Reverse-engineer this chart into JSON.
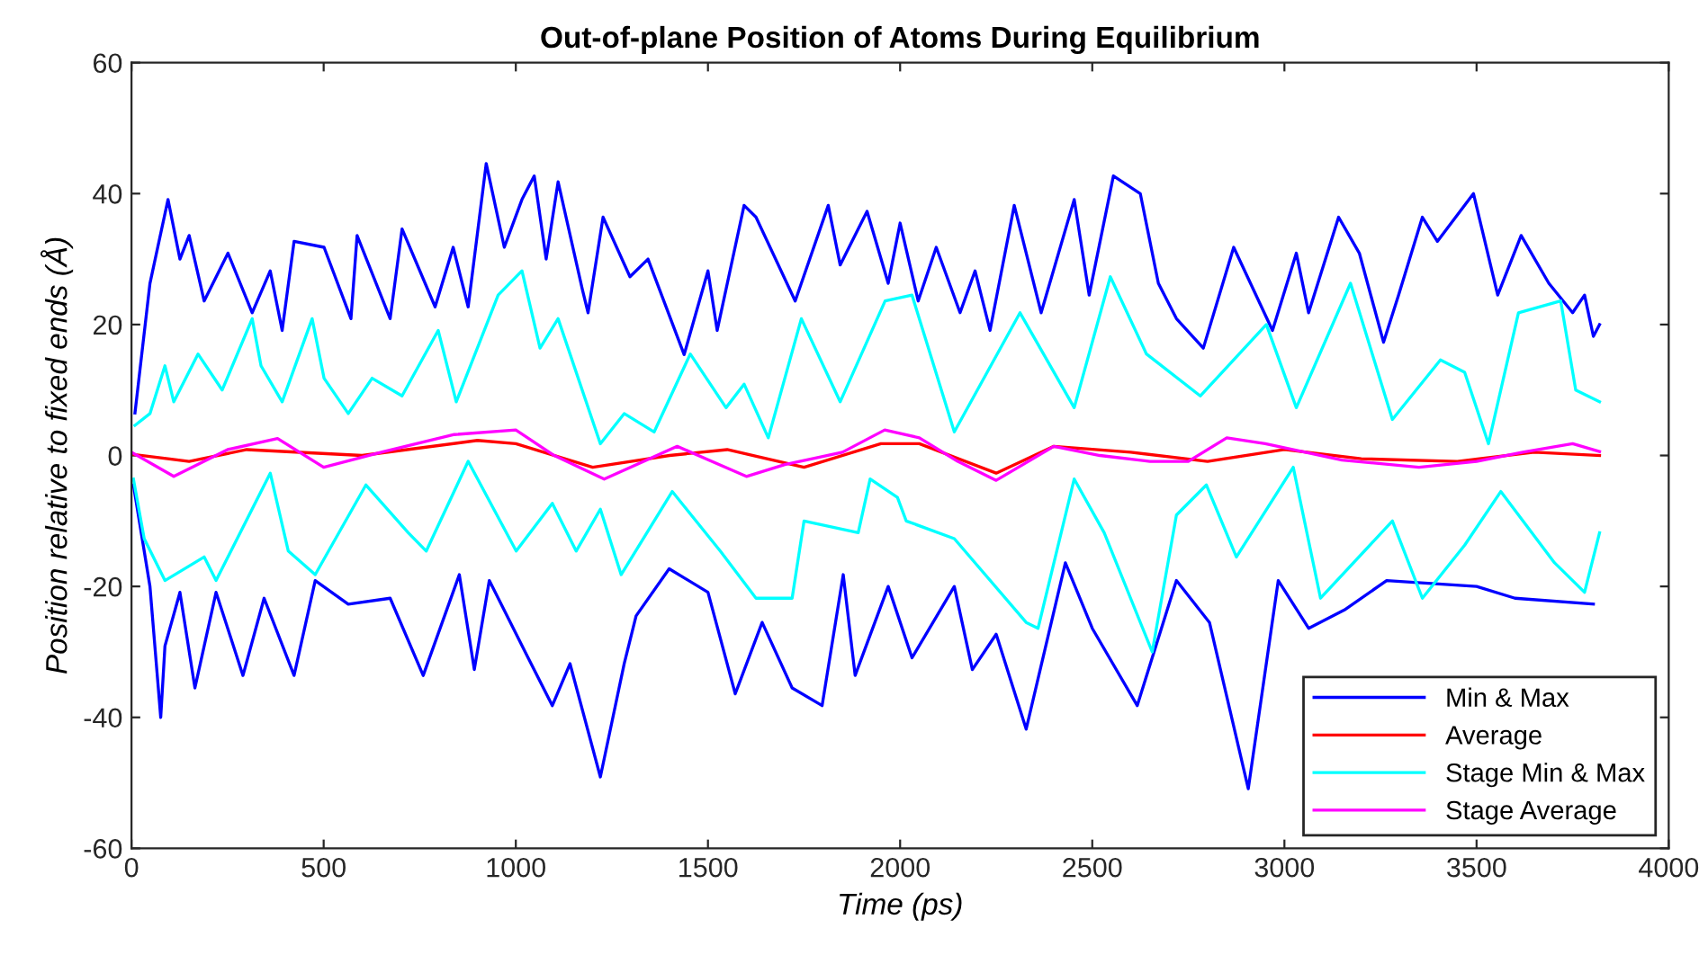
{
  "chart_data": {
    "type": "line",
    "title": "Out-of-plane Position of Atoms During Equilibrium",
    "xlabel": "Time (ps)",
    "ylabel": "Position relative to fixed ends (Å)",
    "xlim": [
      0,
      4000
    ],
    "xticks": [
      0,
      500,
      1000,
      1500,
      2000,
      2500,
      3000,
      3500,
      4000
    ],
    "ylim": [
      -60,
      60
    ],
    "yticks": [
      -60,
      -40,
      -20,
      0,
      20,
      40,
      60
    ],
    "grid": false,
    "legend": "bottom right",
    "marker": "none",
    "line_style": "solid",
    "series": [
      {
        "name": "Min & Max",
        "color": "#0000ff",
        "x": [
          9,
          48,
          95,
          126,
          150,
          189,
          251,
          314,
          361,
          392,
          423,
          501,
          571,
          587,
          673,
          704,
          790,
          837,
          876,
          923,
          970,
          1016,
          1048,
          1079,
          1110,
          1173,
          1188,
          1227,
          1297,
          1344,
          1438,
          1500,
          1524,
          1594,
          1625,
          1727,
          1813,
          1844,
          1914,
          1969,
          2000,
          2047,
          2094,
          2156,
          2195,
          2234,
          2297,
          2367,
          2453,
          2492,
          2555,
          2625,
          2672,
          2719,
          2789,
          2868,
          2969,
          3031,
          3063,
          3141,
          3195,
          3258,
          3297,
          3359,
          3398,
          3492,
          3555,
          3616,
          3688,
          3750,
          3781,
          3804,
          3820
        ],
        "values": [
          6.5,
          26.3,
          39.1,
          30,
          33.6,
          23.6,
          30.9,
          21.8,
          28.2,
          19.1,
          32.7,
          31.8,
          20.9,
          33.6,
          20.9,
          34.6,
          22.7,
          31.8,
          22.7,
          44.6,
          31.8,
          39.1,
          42.7,
          30,
          41.8,
          25.4,
          21.8,
          36.4,
          27.3,
          30,
          15.4,
          28.2,
          19.1,
          38.2,
          36.4,
          23.6,
          38.2,
          29.1,
          37.3,
          26.3,
          35.5,
          23.6,
          31.8,
          21.8,
          28.2,
          19.1,
          38.2,
          21.8,
          39.1,
          24.5,
          42.7,
          40,
          26.3,
          20.9,
          16.4,
          31.8,
          19.1,
          30.9,
          21.8,
          36.4,
          30.9,
          17.3,
          24.5,
          36.4,
          32.7,
          40,
          24.5,
          33.6,
          26.3,
          21.8,
          24.5,
          18.2,
          20
        ]
      },
      {
        "color": "#0000ff",
        "x": [
          5,
          48,
          76,
          87,
          126,
          165,
          220,
          290,
          345,
          423,
          478,
          564,
          673,
          759,
          853,
          892,
          931,
          1032,
          1095,
          1141,
          1220,
          1282,
          1313,
          1399,
          1500,
          1571,
          1641,
          1719,
          1797,
          1852,
          1883,
          1969,
          2031,
          2141,
          2188,
          2250,
          2328,
          2430,
          2500,
          2617,
          2719,
          2805,
          2906,
          2984,
          3063,
          3156,
          3266,
          3500,
          3600,
          3804
        ],
        "values": [
          -4.5,
          -20,
          -40,
          -29.1,
          -20.9,
          -35.5,
          -20.9,
          -33.6,
          -21.8,
          -33.6,
          -19.1,
          -22.7,
          -21.8,
          -33.6,
          -18.2,
          -32.7,
          -19.1,
          -30.9,
          -38.2,
          -31.8,
          -49.1,
          -31.8,
          -24.5,
          -17.3,
          -20.9,
          -36.4,
          -25.5,
          -35.5,
          -38.2,
          -18.2,
          -33.6,
          -20,
          -30.9,
          -20,
          -32.7,
          -27.3,
          -41.8,
          -16.4,
          -26.4,
          -38.2,
          -19.1,
          -25.5,
          -50.9,
          -19.1,
          -26.4,
          -23.6,
          -19.1,
          -20,
          -21.8,
          -22.7
        ]
      },
      {
        "name": "Average",
        "color": "#ff0000",
        "x": [
          0,
          150,
          300,
          600,
          900,
          1000,
          1200,
          1400,
          1550,
          1750,
          1950,
          2050,
          2250,
          2400,
          2600,
          2800,
          3000,
          3200,
          3450,
          3650,
          3820
        ],
        "values": [
          0.2,
          -0.9,
          0.9,
          0,
          2.3,
          1.8,
          -1.8,
          0,
          0.9,
          -1.8,
          1.8,
          1.8,
          -2.7,
          1.4,
          0.5,
          -0.9,
          0.9,
          -0.5,
          -0.9,
          0.5,
          0
        ]
      },
      {
        "name": "Stage Min & Max",
        "color": "#00ffff",
        "x": [
          9,
          48,
          87,
          110,
          173,
          236,
          314,
          337,
          392,
          470,
          501,
          564,
          626,
          704,
          798,
          845,
          954,
          1016,
          1063,
          1110,
          1220,
          1282,
          1360,
          1454,
          1547,
          1594,
          1657,
          1743,
          1844,
          1961,
          2031,
          2141,
          2312,
          2453,
          2547,
          2641,
          2781,
          2953,
          3031,
          3172,
          3281,
          3406,
          3469,
          3531,
          3609,
          3719,
          3758,
          3820
        ],
        "values": [
          4.6,
          6.4,
          13.7,
          8.2,
          15.5,
          10,
          20.9,
          13.7,
          8.2,
          20.9,
          11.8,
          6.4,
          11.8,
          9.1,
          19.1,
          8.2,
          24.5,
          28.2,
          16.4,
          20.9,
          1.8,
          6.4,
          3.6,
          15.5,
          7.3,
          10.9,
          2.7,
          20.9,
          8.2,
          23.6,
          24.5,
          3.6,
          21.8,
          7.3,
          27.3,
          15.5,
          9.1,
          20,
          7.3,
          26.3,
          5.5,
          14.6,
          12.7,
          1.8,
          21.8,
          23.6,
          10,
          8.2
        ]
      },
      {
        "color": "#00ffff",
        "x": [
          5,
          33,
          87,
          189,
          220,
          361,
          408,
          478,
          610,
          720,
          767,
          876,
          1001,
          1095,
          1157,
          1220,
          1274,
          1407,
          1532,
          1625,
          1719,
          1750,
          1891,
          1922,
          1993,
          2016,
          2141,
          2328,
          2359,
          2453,
          2531,
          2656,
          2719,
          2797,
          2875,
          3023,
          3094,
          3281,
          3359,
          3469,
          3563,
          3703,
          3781,
          3820
        ],
        "values": [
          -3.6,
          -12.7,
          -19.1,
          -15.5,
          -19.1,
          -2.7,
          -14.6,
          -18.2,
          -4.5,
          -11.8,
          -14.6,
          -0.9,
          -14.6,
          -7.3,
          -14.6,
          -8.2,
          -18.2,
          -5.5,
          -14.6,
          -21.8,
          -21.8,
          -10,
          -11.8,
          -3.6,
          -6.4,
          -10,
          -12.7,
          -25.5,
          -26.4,
          -3.6,
          -11.8,
          -30,
          -9.1,
          -4.5,
          -15.5,
          -1.8,
          -21.8,
          -10,
          -21.8,
          -13.7,
          -5.5,
          -16.4,
          -20.9,
          -11.8
        ]
      },
      {
        "name": "Stage Average",
        "color": "#ff00ff",
        "x": [
          0,
          110,
          250,
          380,
          500,
          650,
          840,
          1000,
          1100,
          1230,
          1420,
          1600,
          1700,
          1850,
          1960,
          2050,
          2150,
          2250,
          2400,
          2520,
          2650,
          2750,
          2850,
          2950,
          3150,
          3350,
          3500,
          3620,
          3750,
          3820
        ],
        "values": [
          0.5,
          -3.2,
          0.9,
          2.6,
          -1.8,
          0.5,
          3.2,
          3.9,
          0,
          -3.6,
          1.4,
          -3.2,
          -1.4,
          0.5,
          3.9,
          2.7,
          -0.9,
          -3.8,
          1.4,
          0,
          -0.9,
          -0.9,
          2.7,
          1.8,
          -0.7,
          -1.8,
          -0.9,
          0.5,
          1.8,
          0.6
        ]
      }
    ]
  }
}
